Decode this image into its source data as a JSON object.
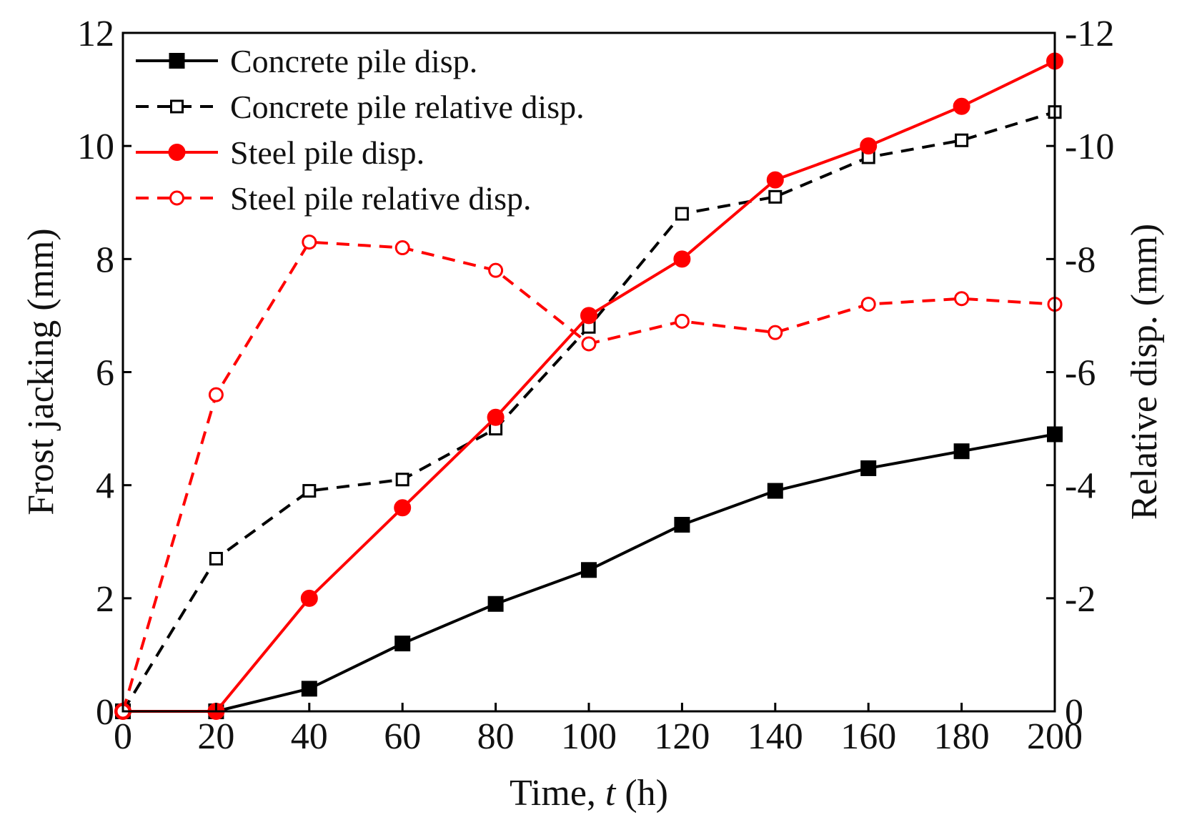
{
  "chart_data": {
    "type": "line",
    "title": "",
    "xlabel": "Time, ",
    "xlabel_var": "t",
    "xlabel_unit": " (h)",
    "ylabel": "Frost jacking (mm)",
    "y2label": "Relative disp. (mm)",
    "xlim": [
      0,
      200
    ],
    "ylim": [
      0,
      12
    ],
    "y2lim": [
      0,
      -12
    ],
    "xticks": [
      0,
      20,
      40,
      60,
      80,
      100,
      120,
      140,
      160,
      180,
      200
    ],
    "yticks": [
      0,
      2,
      4,
      6,
      8,
      10,
      12
    ],
    "y2ticks": [
      0,
      -2,
      -4,
      -6,
      -8,
      -10,
      -12
    ],
    "x": [
      0,
      20,
      40,
      60,
      80,
      100,
      120,
      140,
      160,
      180,
      200
    ],
    "legend_position": "top-left",
    "series": [
      {
        "name": "Concrete pile disp.",
        "axis": "left",
        "color": "#000000",
        "line": "solid",
        "marker": "square-filled",
        "values": [
          0,
          0,
          0.4,
          1.2,
          1.9,
          2.5,
          3.3,
          3.9,
          4.3,
          4.6,
          4.9
        ]
      },
      {
        "name": "Concrete pile relative disp.",
        "axis": "right",
        "color": "#000000",
        "line": "dashed",
        "marker": "square-open",
        "values": [
          0,
          -2.7,
          -3.9,
          -4.1,
          -5.0,
          -6.8,
          -8.8,
          -9.1,
          -9.8,
          -10.1,
          -10.6
        ]
      },
      {
        "name": "Steel pile disp.",
        "axis": "left",
        "color": "#ff0000",
        "line": "solid",
        "marker": "circle-filled",
        "values": [
          0,
          0,
          2.0,
          3.6,
          5.2,
          7.0,
          8.0,
          9.4,
          10.0,
          10.7,
          11.5
        ]
      },
      {
        "name": "Steel pile relative disp.",
        "axis": "right",
        "color": "#ff0000",
        "line": "dashed",
        "marker": "circle-open",
        "values": [
          0,
          -5.6,
          -8.3,
          -8.2,
          -7.8,
          -6.5,
          -6.9,
          -6.7,
          -7.2,
          -7.3,
          -7.2
        ]
      }
    ]
  }
}
